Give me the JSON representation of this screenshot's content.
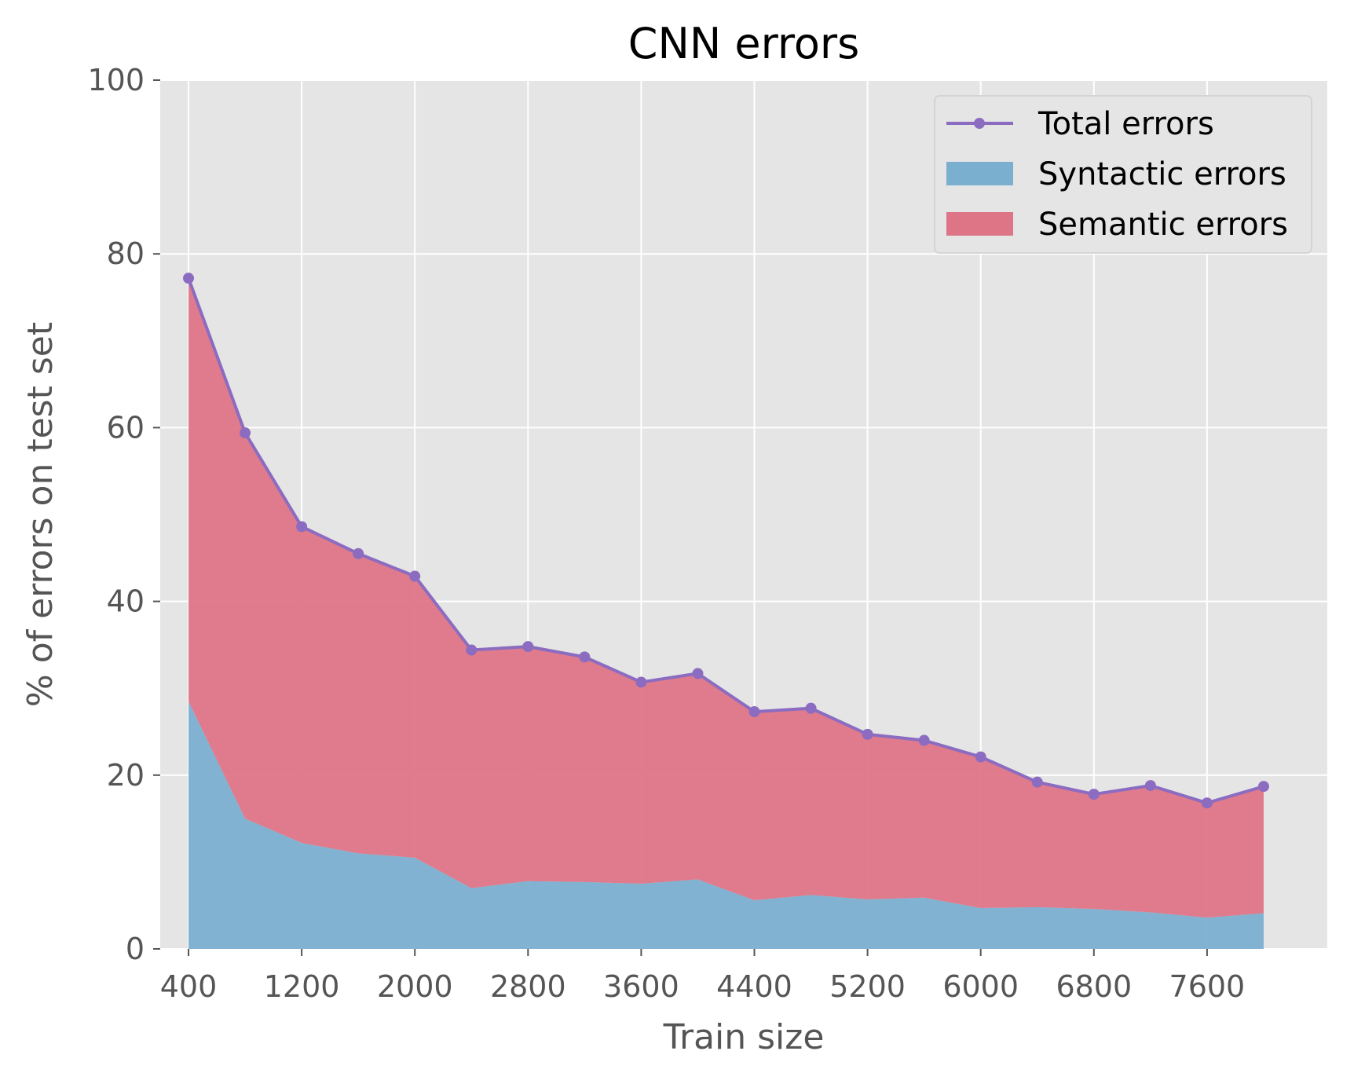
{
  "chart_data": {
    "type": "area",
    "title": "CNN errors",
    "xlabel": "Train size",
    "ylabel": "% of errors on test set",
    "xlim": [
      200,
      8450
    ],
    "ylim": [
      0,
      100
    ],
    "x_ticks": [
      400,
      1200,
      2000,
      2800,
      3600,
      4400,
      5200,
      6000,
      6800,
      7600
    ],
    "y_ticks": [
      0,
      20,
      40,
      60,
      80,
      100
    ],
    "grid": true,
    "legend_position": "top-right",
    "x": [
      400,
      800,
      1200,
      1600,
      2000,
      2400,
      2800,
      3200,
      3600,
      4000,
      4400,
      4800,
      5200,
      5600,
      6000,
      6400,
      6800,
      7200,
      7600,
      8000
    ],
    "series": [
      {
        "name": "Total errors",
        "kind": "line",
        "color": "#8b6cc1",
        "values": [
          77.2,
          59.4,
          48.6,
          45.5,
          42.9,
          34.4,
          34.8,
          33.6,
          30.7,
          31.7,
          27.3,
          27.7,
          24.7,
          24.0,
          22.1,
          19.2,
          17.8,
          18.8,
          16.8,
          18.7
        ]
      },
      {
        "name": "Syntactic errors",
        "kind": "area",
        "color": "#7bafd0",
        "values": [
          28.5,
          15.0,
          12.2,
          11.0,
          10.5,
          7.0,
          7.8,
          7.7,
          7.5,
          8.0,
          5.6,
          6.2,
          5.7,
          5.9,
          4.7,
          4.8,
          4.6,
          4.2,
          3.6,
          4.1
        ]
      },
      {
        "name": "Semantic errors",
        "kind": "area",
        "color": "#de7587",
        "values": [
          48.7,
          44.4,
          36.4,
          34.5,
          32.4,
          27.4,
          27.0,
          25.9,
          23.2,
          23.7,
          21.7,
          21.5,
          19.0,
          18.1,
          17.4,
          14.4,
          13.2,
          14.6,
          13.2,
          14.6
        ]
      }
    ]
  }
}
